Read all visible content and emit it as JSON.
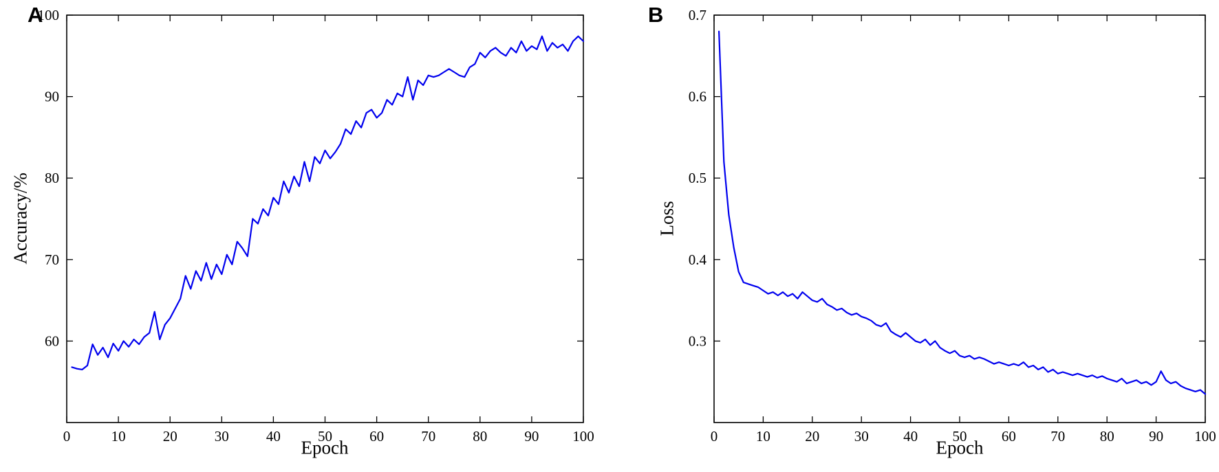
{
  "figure": {
    "background": "#ffffff",
    "axis_color": "#000000",
    "line_color": "#0000ee"
  },
  "chart_data": [
    {
      "type": "line",
      "panel_label": "A",
      "title": "",
      "xlabel": "Epoch",
      "ylabel": "Accuracy/%",
      "xlim": [
        0,
        100
      ],
      "ylim": [
        50,
        100
      ],
      "xticks": [
        0,
        10,
        20,
        30,
        40,
        50,
        60,
        70,
        80,
        90,
        100
      ],
      "yticks": [
        60,
        70,
        80,
        90,
        100
      ],
      "grid": false,
      "legend": "none",
      "line_color": "#0000ee",
      "series": [
        {
          "name": "accuracy",
          "x": [
            1,
            2,
            3,
            4,
            5,
            6,
            7,
            8,
            9,
            10,
            11,
            12,
            13,
            14,
            15,
            16,
            17,
            18,
            19,
            20,
            21,
            22,
            23,
            24,
            25,
            26,
            27,
            28,
            29,
            30,
            31,
            32,
            33,
            34,
            35,
            36,
            37,
            38,
            39,
            40,
            41,
            42,
            43,
            44,
            45,
            46,
            47,
            48,
            49,
            50,
            51,
            52,
            53,
            54,
            55,
            56,
            57,
            58,
            59,
            60,
            61,
            62,
            63,
            64,
            65,
            66,
            67,
            68,
            69,
            70,
            71,
            72,
            73,
            74,
            75,
            76,
            77,
            78,
            79,
            80,
            81,
            82,
            83,
            84,
            85,
            86,
            87,
            88,
            89,
            90,
            91,
            92,
            93,
            94,
            95,
            96,
            97,
            98,
            99,
            100
          ],
          "values": [
            56.8,
            56.6,
            56.5,
            57.0,
            59.6,
            58.3,
            59.2,
            58.0,
            59.7,
            58.8,
            60.0,
            59.3,
            60.2,
            59.6,
            60.5,
            61.0,
            63.6,
            60.2,
            62.0,
            62.8,
            64.0,
            65.2,
            68.0,
            66.4,
            68.6,
            67.4,
            69.6,
            67.6,
            69.4,
            68.2,
            70.6,
            69.4,
            72.2,
            71.4,
            70.4,
            75.0,
            74.4,
            76.2,
            75.4,
            77.6,
            76.8,
            79.6,
            78.2,
            80.2,
            79.0,
            82.0,
            79.6,
            82.6,
            81.8,
            83.4,
            82.4,
            83.2,
            84.2,
            86.0,
            85.4,
            87.0,
            86.2,
            88.0,
            88.4,
            87.4,
            88.0,
            89.6,
            89.0,
            90.4,
            90.0,
            92.4,
            89.6,
            92.0,
            91.4,
            92.6,
            92.4,
            92.6,
            93.0,
            93.4,
            93.0,
            92.6,
            92.4,
            93.6,
            94.0,
            95.4,
            94.8,
            95.6,
            96.0,
            95.4,
            95.0,
            96.0,
            95.4,
            96.8,
            95.6,
            96.2,
            95.8,
            97.4,
            95.6,
            96.6,
            96.0,
            96.4,
            95.6,
            96.8,
            97.4,
            96.8
          ]
        }
      ]
    },
    {
      "type": "line",
      "panel_label": "B",
      "title": "",
      "xlabel": "Epoch",
      "ylabel": "Loss",
      "xlim": [
        0,
        100
      ],
      "ylim": [
        0.2,
        0.7
      ],
      "xticks": [
        0,
        10,
        20,
        30,
        40,
        50,
        60,
        70,
        80,
        90,
        100
      ],
      "yticks": [
        0.3,
        0.4,
        0.5,
        0.6,
        0.7
      ],
      "grid": false,
      "legend": "none",
      "line_color": "#0000ee",
      "series": [
        {
          "name": "loss",
          "x": [
            1,
            2,
            3,
            4,
            5,
            6,
            7,
            8,
            9,
            10,
            11,
            12,
            13,
            14,
            15,
            16,
            17,
            18,
            19,
            20,
            21,
            22,
            23,
            24,
            25,
            26,
            27,
            28,
            29,
            30,
            31,
            32,
            33,
            34,
            35,
            36,
            37,
            38,
            39,
            40,
            41,
            42,
            43,
            44,
            45,
            46,
            47,
            48,
            49,
            50,
            51,
            52,
            53,
            54,
            55,
            56,
            57,
            58,
            59,
            60,
            61,
            62,
            63,
            64,
            65,
            66,
            67,
            68,
            69,
            70,
            71,
            72,
            73,
            74,
            75,
            76,
            77,
            78,
            79,
            80,
            81,
            82,
            83,
            84,
            85,
            86,
            87,
            88,
            89,
            90,
            91,
            92,
            93,
            94,
            95,
            96,
            97,
            98,
            99,
            100
          ],
          "values": [
            0.68,
            0.52,
            0.455,
            0.415,
            0.385,
            0.372,
            0.37,
            0.368,
            0.366,
            0.362,
            0.358,
            0.36,
            0.356,
            0.36,
            0.355,
            0.358,
            0.352,
            0.36,
            0.355,
            0.35,
            0.348,
            0.352,
            0.345,
            0.342,
            0.338,
            0.34,
            0.335,
            0.332,
            0.334,
            0.33,
            0.328,
            0.325,
            0.32,
            0.318,
            0.322,
            0.312,
            0.308,
            0.305,
            0.31,
            0.305,
            0.3,
            0.298,
            0.302,
            0.295,
            0.3,
            0.292,
            0.288,
            0.285,
            0.288,
            0.282,
            0.28,
            0.282,
            0.278,
            0.28,
            0.278,
            0.275,
            0.272,
            0.274,
            0.272,
            0.27,
            0.272,
            0.27,
            0.274,
            0.268,
            0.27,
            0.265,
            0.268,
            0.262,
            0.265,
            0.26,
            0.262,
            0.26,
            0.258,
            0.26,
            0.258,
            0.256,
            0.258,
            0.255,
            0.257,
            0.254,
            0.252,
            0.25,
            0.254,
            0.248,
            0.25,
            0.252,
            0.248,
            0.25,
            0.246,
            0.25,
            0.263,
            0.252,
            0.248,
            0.25,
            0.245,
            0.242,
            0.24,
            0.238,
            0.24,
            0.235
          ]
        }
      ]
    }
  ]
}
